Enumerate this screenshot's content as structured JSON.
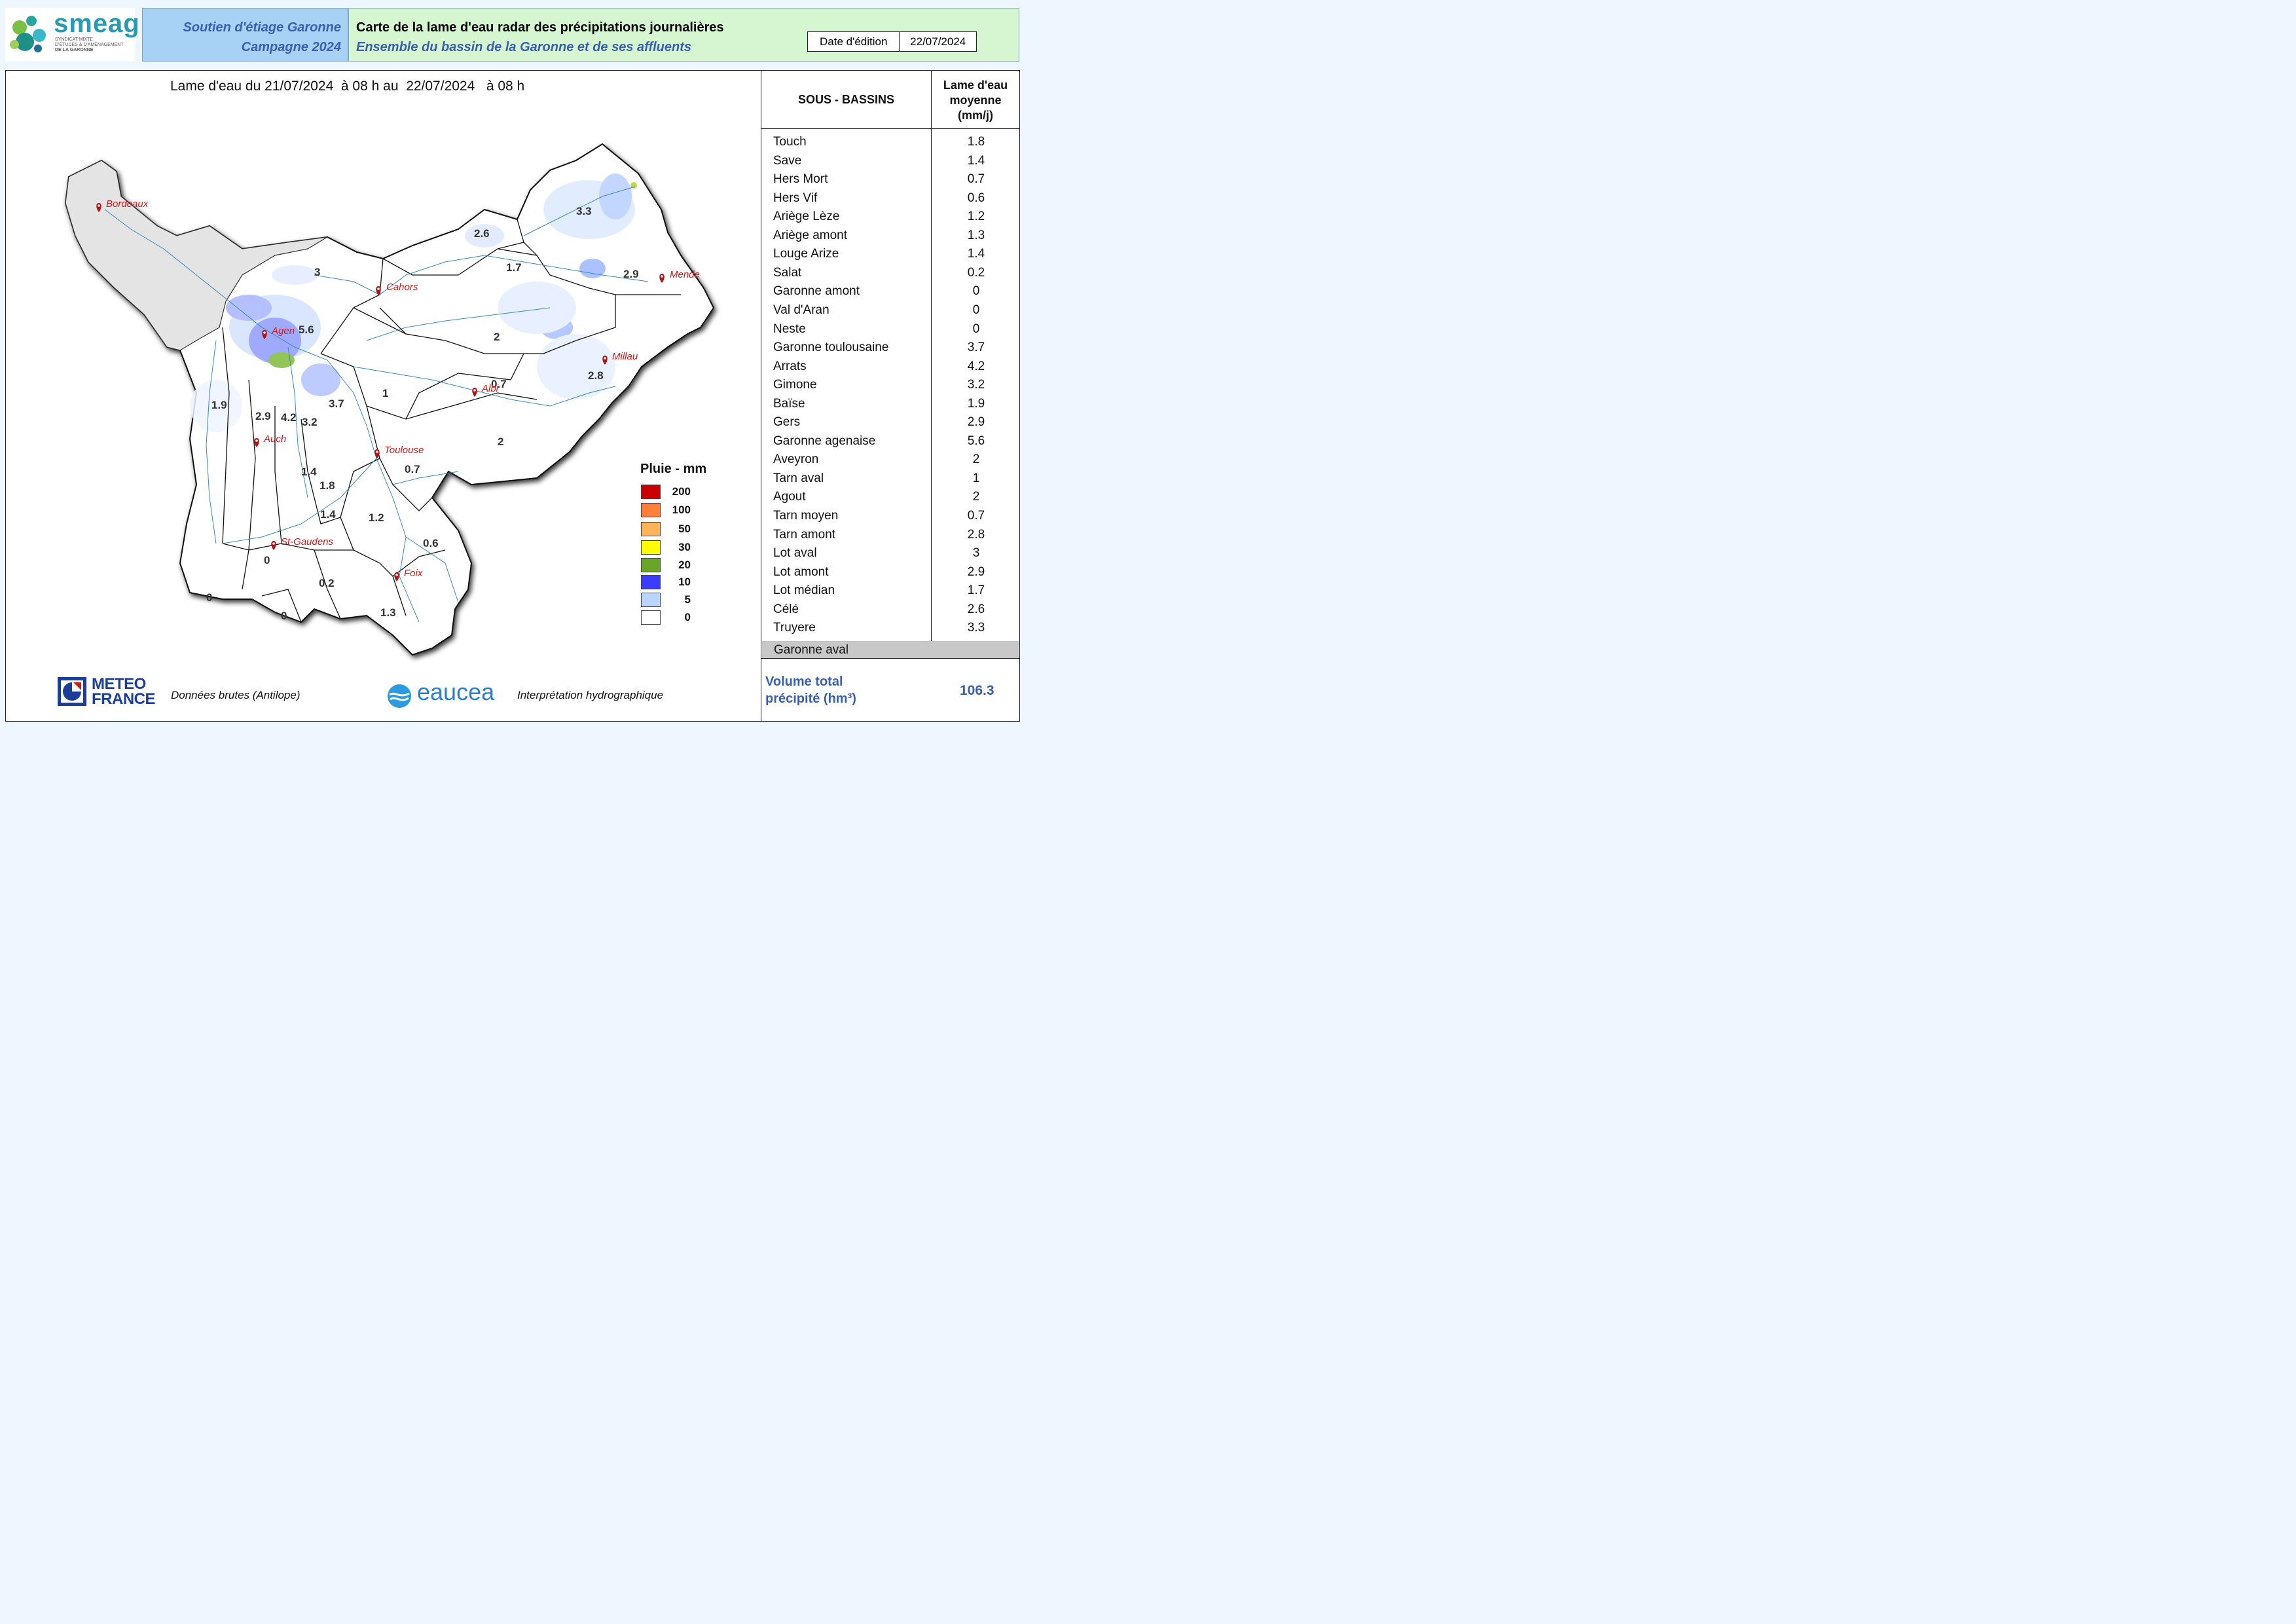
{
  "header": {
    "logo_name": "smeag",
    "logo_sub1": "SYNDICAT MIXTE",
    "logo_sub2": "D'ÉTUDES & D'AMÉNAGEMENT",
    "logo_sub3": "DE LA GARONNE",
    "campaign_line1": "Soutien d'étiage Garonne",
    "campaign_line2": "Campagne 2024",
    "title": "Carte de la lame d'eau radar des précipitations journalières",
    "subtitle": "Ensemble du bassin de la Garonne et de ses affluents",
    "date_label": "Date d'édition",
    "date_value": "22/07/2024"
  },
  "period": {
    "prefix": "Lame d'eau du",
    "start_date": "21/07/2024",
    "start_hour": "à 08 h au",
    "end_date": "22/07/2024",
    "end_hour": "à 08 h"
  },
  "map": {
    "cities": [
      {
        "name": "Bordeaux"
      },
      {
        "name": "Cahors"
      },
      {
        "name": "Agen"
      },
      {
        "name": "Mende"
      },
      {
        "name": "Millau"
      },
      {
        "name": "Albi"
      },
      {
        "name": "Auch"
      },
      {
        "name": "Toulouse"
      },
      {
        "name": "St-Gaudens"
      },
      {
        "name": "Foix"
      }
    ],
    "basin_values": [
      {
        "basin": "Truyere",
        "value": "3.3"
      },
      {
        "basin": "Célé",
        "value": "2.6"
      },
      {
        "basin": "Lot médian",
        "value": "1.7"
      },
      {
        "basin": "Lot aval",
        "value": "3"
      },
      {
        "basin": "Lot amont",
        "value": "2.9"
      },
      {
        "basin": "Garonne agenaise",
        "value": "5.6"
      },
      {
        "basin": "Aveyron",
        "value": "2"
      },
      {
        "basin": "Tarn aval",
        "value": "1"
      },
      {
        "basin": "Tarn moyen",
        "value": "0.7"
      },
      {
        "basin": "Tarn amont",
        "value": "2.8"
      },
      {
        "basin": "Agout",
        "value": "2"
      },
      {
        "basin": "Baïse",
        "value": "1.9"
      },
      {
        "basin": "Gers",
        "value": "2.9"
      },
      {
        "basin": "Arrats",
        "value": "4.2"
      },
      {
        "basin": "Gimone",
        "value": "3.2"
      },
      {
        "basin": "Garonne toulousaine",
        "value": "3.7"
      },
      {
        "basin": "Save",
        "value": "1.4"
      },
      {
        "basin": "Touch",
        "value": "1.8"
      },
      {
        "basin": "Hers Vif",
        "value": "0.6"
      },
      {
        "basin": "Hers Mort",
        "value": "0.7"
      },
      {
        "basin": "Ariège Lèze",
        "value": "1.2"
      },
      {
        "basin": "Salat",
        "value": "0.2"
      },
      {
        "basin": "Ariège amont",
        "value": "1.3"
      },
      {
        "basin": "Neste",
        "value": "0"
      },
      {
        "basin": "Garonne amont",
        "value": "0"
      },
      {
        "basin": "Val d'Aran",
        "value": "0"
      },
      {
        "basin": "Louge Arize",
        "value": "1.4"
      }
    ]
  },
  "legend": {
    "title": "Pluie - mm",
    "items": [
      {
        "label": "200",
        "color": "#c80000"
      },
      {
        "label": "100",
        "color": "#ff7f3a"
      },
      {
        "label": "50",
        "color": "#ffb45a"
      },
      {
        "label": "30",
        "color": "#ffff00"
      },
      {
        "label": "20",
        "color": "#6aa52a"
      },
      {
        "label": "10",
        "color": "#3c3cff"
      },
      {
        "label": "5",
        "color": "#b8d6ff"
      },
      {
        "label": "0",
        "color": "#ffffff"
      }
    ]
  },
  "table": {
    "col1_header": "SOUS - BASSINS",
    "col2_header_1": "Lame d'eau",
    "col2_header_2": "moyenne",
    "col2_header_3": "(mm/j)",
    "rows": [
      {
        "name": "Touch",
        "value": "1.8"
      },
      {
        "name": "Save",
        "value": "1.4"
      },
      {
        "name": "Hers Mort",
        "value": "0.7"
      },
      {
        "name": "Hers Vif",
        "value": "0.6"
      },
      {
        "name": "Ariège Lèze",
        "value": "1.2"
      },
      {
        "name": "Ariège amont",
        "value": "1.3"
      },
      {
        "name": "Louge Arize",
        "value": "1.4"
      },
      {
        "name": "Salat",
        "value": "0.2"
      },
      {
        "name": "Garonne amont",
        "value": "0"
      },
      {
        "name": "Val d'Aran",
        "value": "0"
      },
      {
        "name": "Neste",
        "value": "0"
      },
      {
        "name": "Garonne toulousaine",
        "value": "3.7"
      },
      {
        "name": "Arrats",
        "value": "4.2"
      },
      {
        "name": "Gimone",
        "value": "3.2"
      },
      {
        "name": "Baïse",
        "value": "1.9"
      },
      {
        "name": "Gers",
        "value": "2.9"
      },
      {
        "name": "Garonne agenaise",
        "value": "5.6"
      },
      {
        "name": "Aveyron",
        "value": "2"
      },
      {
        "name": "Tarn aval",
        "value": "1"
      },
      {
        "name": "Agout",
        "value": "2"
      },
      {
        "name": "Tarn moyen",
        "value": "0.7"
      },
      {
        "name": "Tarn amont",
        "value": "2.8"
      },
      {
        "name": "Lot aval",
        "value": "3"
      },
      {
        "name": "Lot amont",
        "value": "2.9"
      },
      {
        "name": "Lot médian",
        "value": "1.7"
      },
      {
        "name": "Célé",
        "value": "2.6"
      },
      {
        "name": "Truyere",
        "value": "3.3"
      }
    ],
    "grey_row": "Garonne aval",
    "volume_label_1": "Volume total",
    "volume_label_2": "précipité (hm³)",
    "volume_value": "106.3"
  },
  "footer": {
    "meteo_line1": "METEO",
    "meteo_line2": "FRANCE",
    "meteo_caption": "Données brutes (Antilope)",
    "eaucea_name": "eaucea",
    "eaucea_caption": "Interprétation hydrographique"
  }
}
